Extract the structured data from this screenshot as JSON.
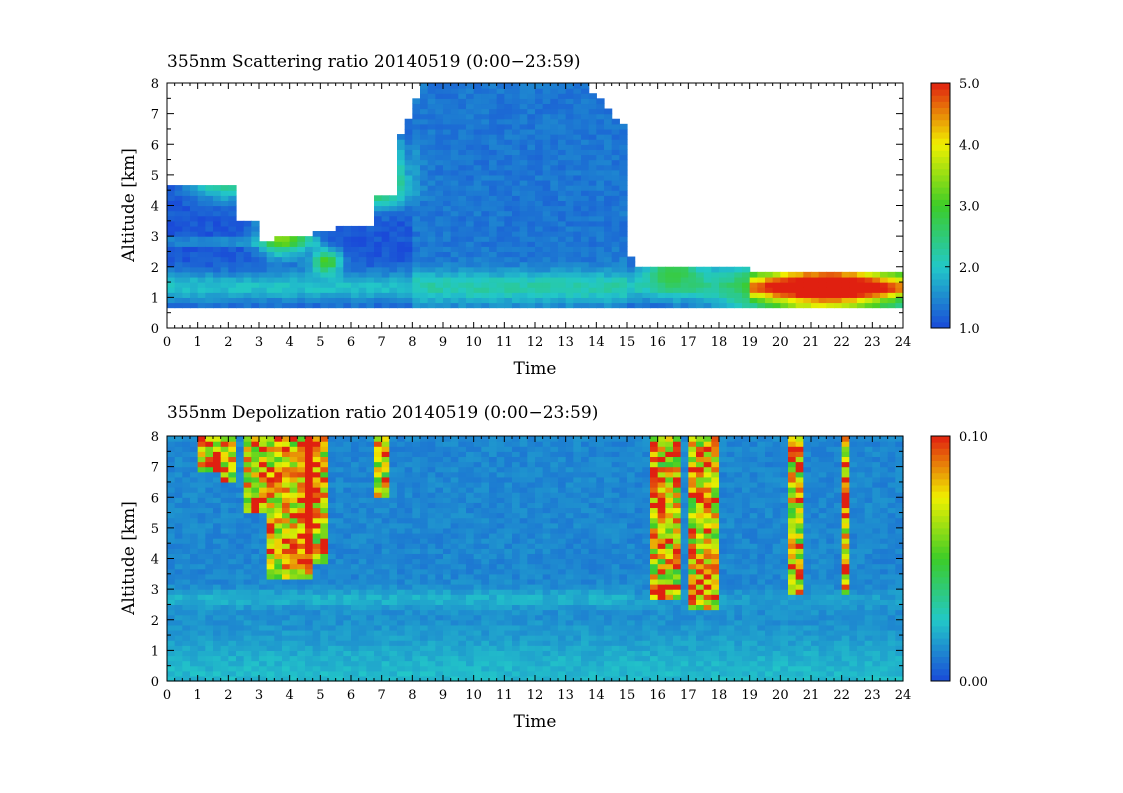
{
  "chart_data": [
    {
      "type": "heatmap",
      "title": "355nm Scattering ratio  20140519 (0:00−23:59)",
      "xlabel": "Time",
      "ylabel": "Altitude [km]",
      "xlim": [
        0,
        24
      ],
      "ylim": [
        0,
        8
      ],
      "xticks": [
        "0",
        "1",
        "2",
        "3",
        "4",
        "5",
        "6",
        "7",
        "8",
        "9",
        "10",
        "11",
        "12",
        "13",
        "14",
        "15",
        "16",
        "17",
        "18",
        "19",
        "20",
        "21",
        "22",
        "23",
        "24"
      ],
      "yticks": [
        "0",
        "1",
        "2",
        "3",
        "4",
        "5",
        "6",
        "7",
        "8"
      ],
      "colorbar": {
        "min": 1.0,
        "max": 5.0,
        "ticks": [
          "1.0",
          "2.0",
          "3.0",
          "4.0",
          "5.0"
        ],
        "tick_values": [
          1,
          2,
          3,
          4,
          5
        ]
      },
      "colors": {
        "low": "#1a4ad8",
        "mid": "#22c8c8",
        "green": "#3ccc28",
        "yellow": "#f0f000",
        "high": "#e02010",
        "missing": "#ffffff"
      }
    },
    {
      "type": "heatmap",
      "title": "355nm Depolization ratio  20140519 (0:00−23:59)",
      "xlabel": "Time",
      "ylabel": "Altitude [km]",
      "xlim": [
        0,
        24
      ],
      "ylim": [
        0,
        8
      ],
      "xticks": [
        "0",
        "1",
        "2",
        "3",
        "4",
        "5",
        "6",
        "7",
        "8",
        "9",
        "10",
        "11",
        "12",
        "13",
        "14",
        "15",
        "16",
        "17",
        "18",
        "19",
        "20",
        "21",
        "22",
        "23",
        "24"
      ],
      "yticks": [
        "0",
        "1",
        "2",
        "3",
        "4",
        "5",
        "6",
        "7",
        "8"
      ],
      "colorbar": {
        "min": 0.0,
        "max": 0.1,
        "ticks": [
          "0.00",
          "0.10"
        ],
        "tick_values": [
          0,
          0.1
        ]
      },
      "colors": {
        "low": "#1a4ad8",
        "mid": "#22c8c8",
        "green": "#3ccc28",
        "yellow": "#f0f000",
        "high": "#e02010",
        "missing": "#ffffff"
      }
    }
  ]
}
